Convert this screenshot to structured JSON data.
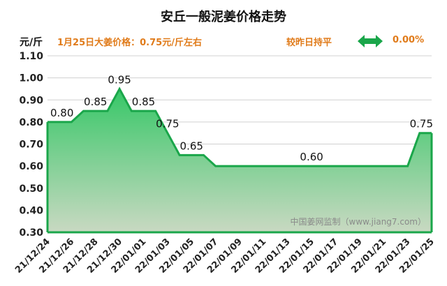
{
  "header": {
    "title": "安丘一般泥姜价格走势",
    "unit": "元/斤",
    "price_note": "1月25日大姜价格：0.75元/斤左右",
    "compare_label": "较昨日持平",
    "change_value": "0.00%",
    "arrow_icon": "double-arrow-icon"
  },
  "colors": {
    "line": "#1aa64a",
    "fill_top": "#36c767",
    "fill_bottom": "#c9d9c2",
    "accent": "#e07b1a",
    "grid": "#d0d0d0"
  },
  "chart_data": {
    "type": "area",
    "title": "安丘一般泥姜价格走势",
    "ylabel": "元/斤",
    "xlabel": "",
    "ylim": [
      0.3,
      1.1
    ],
    "yticks": [
      "0.30",
      "0.40",
      "0.50",
      "0.60",
      "0.70",
      "0.80",
      "0.90",
      "1.00",
      "1.10"
    ],
    "x": [
      "21/12/24",
      "21/12/25",
      "21/12/26",
      "21/12/27",
      "21/12/28",
      "21/12/29",
      "21/12/30",
      "21/12/31",
      "22/01/01",
      "22/01/02",
      "22/01/03",
      "22/01/04",
      "22/01/05",
      "22/01/06",
      "22/01/07",
      "22/01/08",
      "22/01/09",
      "22/01/10",
      "22/01/11",
      "22/01/12",
      "22/01/13",
      "22/01/14",
      "22/01/15",
      "22/01/16",
      "22/01/17",
      "22/01/18",
      "22/01/19",
      "22/01/20",
      "22/01/21",
      "22/01/22",
      "22/01/23",
      "22/01/24",
      "22/01/25"
    ],
    "values": [
      0.8,
      0.8,
      0.8,
      0.85,
      0.85,
      0.85,
      0.95,
      0.85,
      0.85,
      0.85,
      0.75,
      0.65,
      0.65,
      0.65,
      0.6,
      0.6,
      0.6,
      0.6,
      0.6,
      0.6,
      0.6,
      0.6,
      0.6,
      0.6,
      0.6,
      0.6,
      0.6,
      0.6,
      0.6,
      0.6,
      0.6,
      0.75,
      0.75
    ],
    "xtick_labels": [
      "21/12/24",
      "21/12/26",
      "21/12/28",
      "21/12/30",
      "22/01/01",
      "22/01/03",
      "22/01/05",
      "22/01/07",
      "22/01/09",
      "22/01/11",
      "22/01/13",
      "22/01/15",
      "22/01/17",
      "22/01/19",
      "22/01/21",
      "22/01/23",
      "22/01/25"
    ],
    "data_labels": [
      {
        "index": 0,
        "text": "0.80"
      },
      {
        "index": 4,
        "text": "0.85"
      },
      {
        "index": 6,
        "text": "0.95"
      },
      {
        "index": 8,
        "text": "0.85"
      },
      {
        "index": 10,
        "text": "0.75"
      },
      {
        "index": 12,
        "text": "0.65"
      },
      {
        "index": 22,
        "text": "0.60"
      },
      {
        "index": 32,
        "text": "0.75"
      }
    ],
    "watermark": "中国姜网监制（www.jiang7.com）",
    "grid": true
  }
}
